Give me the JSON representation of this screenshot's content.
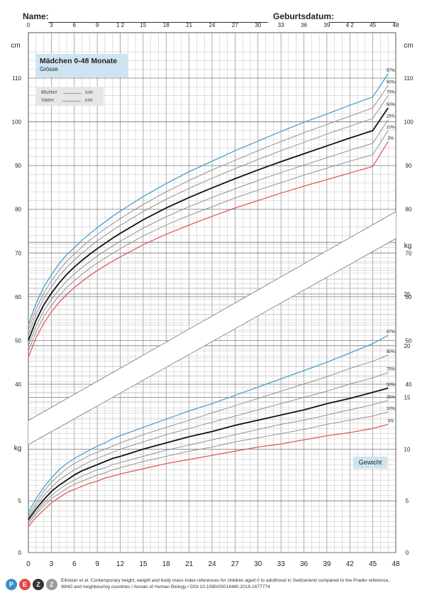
{
  "header": {
    "name_label": "Name:",
    "birthdate_label": "Geburtsdatum:"
  },
  "panel": {
    "title": "Mädchen 0-48 Monate",
    "subtitle": "Grösse",
    "mother_label": "Mutter",
    "mother_unit": "cm",
    "father_label": "Vater",
    "father_unit": "cm"
  },
  "weight_panel": {
    "label": "Gewicht"
  },
  "units": {
    "height_left": "cm",
    "height_right": "cm",
    "weight_left": "kg",
    "weight_right": "kg"
  },
  "footer": {
    "citation": "Eiholzer et al. Contemporary height, weight and body mass index references for children aged 0 to adulthood in Switzerland compared to the Prader reference, WHO and neighbouring countries / Annals of Human Biology / DOI 10.1080/03014460.2019.1677774",
    "logo_letters": [
      "P",
      "E",
      "Z",
      "Z"
    ],
    "logo_colors": [
      "#3a8fc9",
      "#e04a4a",
      "#333333",
      "#9a9a9a"
    ]
  },
  "chart_data": [
    {
      "type": "line",
      "title": "Grösse",
      "xlabel": "",
      "ylabel": "cm",
      "x_ticks": [
        "0",
        "3",
        "6",
        "9",
        "1 2",
        "15",
        "18",
        "21",
        "24",
        "27",
        "30",
        "33",
        "36",
        "39",
        "4 2",
        "45",
        "48"
      ],
      "x_ticks_bottom": [
        "0",
        "3",
        "6",
        "9",
        "12",
        "15",
        "18",
        "21",
        "24",
        "27",
        "30",
        "33",
        "36",
        "39",
        "42",
        "45",
        "48"
      ],
      "y_ticks": [
        "40",
        "50",
        "60",
        "70",
        "80",
        "90",
        "100",
        "110"
      ],
      "xlim": [
        0,
        48
      ],
      "ylim": [
        35,
        115
      ],
      "grid": true,
      "x": [
        0,
        1,
        2,
        3,
        4,
        5,
        6,
        7,
        8,
        9,
        10,
        11,
        12,
        15,
        18,
        21,
        24,
        27,
        30,
        33,
        36,
        39,
        42,
        45,
        47
      ],
      "series": [
        {
          "name": "97%",
          "color": "#4a9fd0",
          "values": [
            53.6,
            58.5,
            62.2,
            65.0,
            67.5,
            69.6,
            71.2,
            72.9,
            74.4,
            75.8,
            77.1,
            78.4,
            79.6,
            82.9,
            85.9,
            88.6,
            91.0,
            93.4,
            95.6,
            97.8,
            99.9,
            101.8,
            103.8,
            105.7,
            111.0
          ]
        },
        {
          "name": "90%",
          "color": "#888888",
          "values": [
            52.4,
            57.2,
            60.8,
            63.6,
            66.0,
            68.1,
            69.8,
            71.4,
            72.9,
            74.2,
            75.5,
            76.7,
            77.9,
            81.1,
            84.0,
            86.6,
            89.0,
            91.2,
            93.4,
            95.5,
            97.5,
            99.4,
            101.3,
            103.2,
            108.3
          ]
        },
        {
          "name": "75%",
          "color": "#888888",
          "values": [
            51.3,
            56.0,
            59.5,
            62.3,
            64.7,
            66.7,
            68.4,
            70.0,
            71.4,
            72.8,
            74.0,
            75.2,
            76.3,
            79.5,
            82.3,
            84.8,
            87.1,
            89.3,
            91.4,
            93.4,
            95.3,
            97.2,
            99.0,
            100.8,
            106.0
          ]
        },
        {
          "name": "50%",
          "color": "#111111",
          "values": [
            50.0,
            54.6,
            58.1,
            60.8,
            63.1,
            65.1,
            66.8,
            68.3,
            69.7,
            71.0,
            72.2,
            73.4,
            74.5,
            77.6,
            80.3,
            82.7,
            84.9,
            87.0,
            89.0,
            90.9,
            92.7,
            94.5,
            96.3,
            98.0,
            103.2
          ]
        },
        {
          "name": "25%",
          "color": "#888888",
          "values": [
            48.8,
            53.3,
            56.7,
            59.4,
            61.6,
            63.6,
            65.2,
            66.7,
            68.0,
            69.3,
            70.5,
            71.6,
            72.7,
            75.7,
            78.3,
            80.6,
            82.7,
            84.7,
            86.6,
            88.4,
            90.1,
            91.8,
            93.5,
            95.1,
            100.5
          ]
        },
        {
          "name": "10%",
          "color": "#888888",
          "values": [
            47.6,
            52.0,
            55.4,
            58.0,
            60.2,
            62.1,
            63.7,
            65.1,
            66.5,
            67.7,
            68.8,
            69.9,
            71.0,
            73.9,
            76.4,
            78.6,
            80.6,
            82.6,
            84.4,
            86.1,
            87.8,
            89.4,
            91.0,
            92.5,
            98.0
          ]
        },
        {
          "name": "3%",
          "color": "#e05a5a",
          "values": [
            46.2,
            50.6,
            53.9,
            56.5,
            58.7,
            60.5,
            62.1,
            63.5,
            64.8,
            66.0,
            67.1,
            68.1,
            69.1,
            71.9,
            74.3,
            76.4,
            78.4,
            80.3,
            82.0,
            83.7,
            85.3,
            86.8,
            88.3,
            89.8,
            95.5
          ]
        }
      ]
    },
    {
      "type": "line",
      "title": "Gewicht",
      "xlabel": "",
      "ylabel": "kg",
      "y_ticks_left": [
        "0",
        "5"
      ],
      "y_ticks_right": [
        "0",
        "5",
        "10",
        "15",
        "20",
        "25"
      ],
      "xlim": [
        0,
        48
      ],
      "ylim": [
        0,
        30
      ],
      "grid": true,
      "x": [
        0,
        1,
        2,
        3,
        4,
        5,
        6,
        7,
        8,
        9,
        10,
        11,
        12,
        15,
        18,
        21,
        24,
        27,
        30,
        33,
        36,
        39,
        42,
        45,
        47
      ],
      "series": [
        {
          "name": "97%",
          "color": "#4a9fd0",
          "values": [
            3.9,
            5.2,
            6.3,
            7.2,
            8.0,
            8.6,
            9.1,
            9.5,
            9.9,
            10.3,
            10.6,
            11.0,
            11.3,
            12.1,
            12.9,
            13.7,
            14.4,
            15.2,
            16.0,
            16.8,
            17.6,
            18.4,
            19.3,
            20.2,
            21.0
          ]
        },
        {
          "name": "90%",
          "color": "#888888",
          "values": [
            3.6,
            4.8,
            5.9,
            6.8,
            7.5,
            8.1,
            8.6,
            9.0,
            9.4,
            9.7,
            10.0,
            10.3,
            10.6,
            11.4,
            12.1,
            12.8,
            13.5,
            14.2,
            14.9,
            15.6,
            16.3,
            17.0,
            17.8,
            18.5,
            19.1
          ]
        },
        {
          "name": "75%",
          "color": "#888888",
          "values": [
            3.4,
            4.5,
            5.5,
            6.3,
            7.0,
            7.5,
            8.0,
            8.4,
            8.8,
            9.1,
            9.4,
            9.7,
            10.0,
            10.7,
            11.4,
            12.0,
            12.6,
            13.2,
            13.8,
            14.4,
            15.0,
            15.6,
            16.3,
            16.9,
            17.4
          ]
        },
        {
          "name": "50%",
          "color": "#111111",
          "values": [
            3.2,
            4.2,
            5.1,
            5.9,
            6.5,
            7.0,
            7.5,
            7.9,
            8.2,
            8.5,
            8.8,
            9.1,
            9.3,
            10.0,
            10.6,
            11.2,
            11.7,
            12.3,
            12.8,
            13.3,
            13.8,
            14.4,
            14.9,
            15.5,
            15.9
          ]
        },
        {
          "name": "25%",
          "color": "#888888",
          "values": [
            3.0,
            3.9,
            4.8,
            5.5,
            6.1,
            6.6,
            7.0,
            7.4,
            7.7,
            8.0,
            8.2,
            8.5,
            8.7,
            9.3,
            9.9,
            10.4,
            10.9,
            11.4,
            11.9,
            12.4,
            12.8,
            13.3,
            13.8,
            14.3,
            14.7
          ]
        },
        {
          "name": "10%",
          "color": "#888888",
          "values": [
            2.8,
            3.7,
            4.5,
            5.2,
            5.7,
            6.2,
            6.6,
            6.9,
            7.2,
            7.5,
            7.7,
            8.0,
            8.2,
            8.8,
            9.3,
            9.8,
            10.2,
            10.7,
            11.1,
            11.5,
            11.9,
            12.4,
            12.8,
            13.2,
            13.6
          ]
        },
        {
          "name": "3%",
          "color": "#e05a5a",
          "values": [
            2.5,
            3.4,
            4.1,
            4.8,
            5.3,
            5.8,
            6.1,
            6.4,
            6.7,
            6.9,
            7.2,
            7.4,
            7.6,
            8.1,
            8.6,
            9.0,
            9.4,
            9.8,
            10.2,
            10.5,
            10.9,
            11.3,
            11.6,
            12.0,
            12.4
          ]
        }
      ]
    }
  ]
}
